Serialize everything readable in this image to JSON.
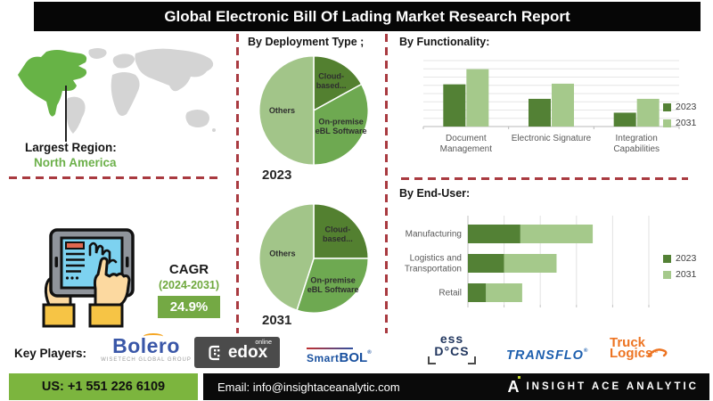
{
  "header": {
    "title": "Global Electronic Bill Of Lading Market Research Report"
  },
  "map": {
    "largest_region_label": "Largest Region:",
    "largest_region": "North America",
    "highlight_color": "#67b346",
    "land_color": "#d4d4d4"
  },
  "cagr": {
    "label": "CAGR",
    "period": "(2024-2031)",
    "value": "24.9%"
  },
  "colors": {
    "accent_dark_green": "#538135",
    "accent_light_green": "#a5c98b",
    "dashed_line_red": "#a93a40",
    "footer_green": "#7cb53e",
    "title_bar_black": "#060606"
  },
  "chart_data": [
    {
      "type": "pie",
      "section": "By Deployment Type ;",
      "year": "2023",
      "slices": [
        {
          "label": "Cloud-based eBL Software",
          "label_lines": [
            "Cloud-",
            "based..."
          ],
          "value": 17,
          "color": "#538030",
          "label_r": 0.63
        },
        {
          "label": "On-premise eBL Software",
          "label_lines": [
            "On-premise",
            "eBL Software"
          ],
          "value": 33,
          "color": "#6ea951",
          "label_r": 0.58
        },
        {
          "label": "Others",
          "label_lines": [
            "Others"
          ],
          "value": 50,
          "color": "#a2c589",
          "label_r": 0.58
        }
      ]
    },
    {
      "type": "pie",
      "section": "By Deployment Type ;",
      "year": "2031",
      "slices": [
        {
          "label": "Cloud-based eBL Software",
          "label_lines": [
            "Cloud-",
            "based..."
          ],
          "value": 25,
          "color": "#538030",
          "label_r": 0.62
        },
        {
          "label": "On-premise eBL Software",
          "label_lines": [
            "On-premise",
            "eBL Software"
          ],
          "value": 30,
          "color": "#6ea951",
          "label_r": 0.6
        },
        {
          "label": "Others",
          "label_lines": [
            "Others"
          ],
          "value": 45,
          "color": "#a2c589",
          "label_r": 0.58
        }
      ]
    },
    {
      "type": "bar",
      "title": "By  Functionality:",
      "categories": [
        "Document Management",
        "Electronic Signature",
        "Integration Capabilities"
      ],
      "categories_lines": [
        [
          "Document",
          "Management"
        ],
        [
          "Electronic Signature"
        ],
        [
          "Integration",
          "Capabilities"
        ]
      ],
      "series": [
        {
          "name": "2023",
          "color": "#538135",
          "values": [
            64,
            42,
            21
          ]
        },
        {
          "name": "2031",
          "color": "#a5c98b",
          "values": [
            87,
            65,
            42
          ]
        }
      ],
      "ylim": [
        0,
        100
      ],
      "gridlines": 8,
      "legend_position": "right"
    },
    {
      "type": "bar-horizontal-stacked",
      "title": "By End-User:",
      "categories": [
        "Manufacturing",
        "Logistics and Transportation",
        "Retail"
      ],
      "categories_lines": [
        [
          "Manufacturing"
        ],
        [
          "Logistics and",
          "Transportation"
        ],
        [
          "Retail"
        ]
      ],
      "series": [
        {
          "name": "2023",
          "color": "#538135",
          "values": [
            29,
            20,
            10
          ]
        },
        {
          "name": "2031",
          "color": "#a5c98b",
          "values": [
            40,
            29,
            20
          ]
        }
      ],
      "xlim": [
        0,
        100
      ],
      "gridlines": 5,
      "legend_position": "right"
    }
  ],
  "key_players": {
    "label": "Key Players:",
    "bolero": {
      "name": "Bolero",
      "tagline": "WISETECH GLOBAL GROUP"
    },
    "edox": {
      "name": "edox",
      "badge": "online"
    },
    "smartbol": {
      "prefix": "Smart",
      "suffix": "BOL",
      "mark": "®"
    },
    "essdocs": {
      "line1": "ess",
      "line2": "D°CS"
    },
    "transflo": {
      "name": "TRANSFLO",
      "mark": "®"
    },
    "trucklogics": {
      "line1": "Truck",
      "line2": "Logics",
      "mark": "™"
    }
  },
  "footer": {
    "phone": "US: +1 551 226 6109",
    "email": "Email: info@insightaceanalytic.com",
    "brand": "INSIGHT ACE ANALYTIC",
    "brand_icon": "A"
  }
}
